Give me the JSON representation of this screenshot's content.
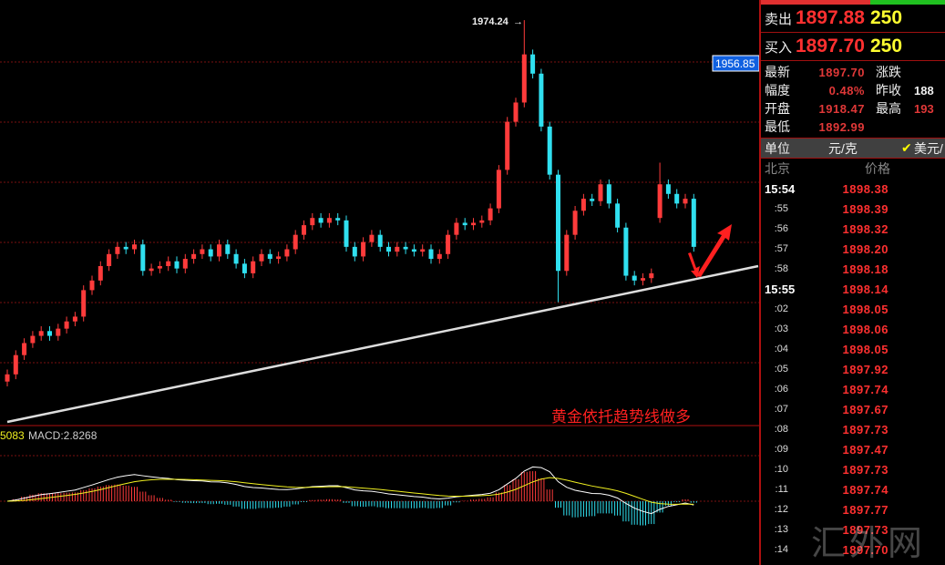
{
  "chart": {
    "price_label_high": "1974.24",
    "price_tag": "1956.85",
    "annotation": "黄金依托趋势线做多",
    "macd_prefix": "5083",
    "macd_label": "MACD:2.8268",
    "colors": {
      "up": "#ff3b3b",
      "down": "#30e0f0",
      "grid": "#7a1010",
      "tag": "#1060e0"
    }
  },
  "chart_data": {
    "type": "candlestick",
    "closes": [
      1827,
      1835,
      1840,
      1843,
      1845,
      1843,
      1846,
      1849,
      1851,
      1862,
      1866,
      1872,
      1877,
      1880,
      1879,
      1881,
      1870,
      1871,
      1872,
      1874,
      1871,
      1875,
      1877,
      1879,
      1876,
      1881,
      1877,
      1873,
      1869,
      1874,
      1877,
      1875,
      1876,
      1879,
      1885,
      1889,
      1892,
      1890,
      1892,
      1891,
      1880,
      1876,
      1882,
      1885,
      1880,
      1878,
      1880,
      1879,
      1878,
      1879,
      1875,
      1877,
      1885,
      1890,
      1889,
      1890,
      1891,
      1896,
      1912,
      1932,
      1940,
      1960,
      1952,
      1930,
      1910,
      1870,
      1885,
      1895,
      1900,
      1899,
      1906,
      1898,
      1888,
      1868,
      1866,
      1867,
      1869,
      1906,
      1902,
      1898,
      1900,
      1880
    ],
    "high": 1974.24,
    "low": 1857,
    "ylim": [
      1812,
      1982
    ]
  },
  "panel": {
    "sell_label": "卖出",
    "sell_price": "1897.88",
    "sell_vol": "250",
    "buy_label": "买入",
    "buy_price": "1897.70",
    "buy_vol": "250",
    "stats": [
      {
        "k": "最新",
        "v": "1897.70",
        "k2": "涨跌",
        "v2": ""
      },
      {
        "k": "幅度",
        "v": "0.48%",
        "k2": "昨收",
        "v2": "188"
      },
      {
        "k": "开盘",
        "v": "1918.47",
        "k2": "最高",
        "v2": "193"
      },
      {
        "k": "最低",
        "v": "1892.99",
        "k2": "",
        "v2": ""
      }
    ],
    "unit_label": "单位",
    "unit_value": "元/克",
    "unit_alt": "美元/",
    "col_time": "北京",
    "col_price": "价格",
    "ticks": [
      {
        "t": "15:54",
        "p": "1898.38",
        "big": true
      },
      {
        "t": ":55",
        "p": "1898.39"
      },
      {
        "t": ":56",
        "p": "1898.32"
      },
      {
        "t": ":57",
        "p": "1898.20"
      },
      {
        "t": ":58",
        "p": "1898.18"
      },
      {
        "t": "15:55",
        "p": "1898.14",
        "big": true
      },
      {
        "t": ":02",
        "p": "1898.05"
      },
      {
        "t": ":03",
        "p": "1898.06"
      },
      {
        "t": ":04",
        "p": "1898.05"
      },
      {
        "t": ":05",
        "p": "1897.92"
      },
      {
        "t": ":06",
        "p": "1897.74"
      },
      {
        "t": ":07",
        "p": "1897.67"
      },
      {
        "t": ":08",
        "p": "1897.73"
      },
      {
        "t": ":09",
        "p": "1897.47"
      },
      {
        "t": ":10",
        "p": "1897.73"
      },
      {
        "t": ":11",
        "p": "1897.74"
      },
      {
        "t": ":12",
        "p": "1897.77"
      },
      {
        "t": ":13",
        "p": "1897.73"
      },
      {
        "t": ":14",
        "p": "1897.70"
      }
    ],
    "watermark": "汇外网"
  }
}
